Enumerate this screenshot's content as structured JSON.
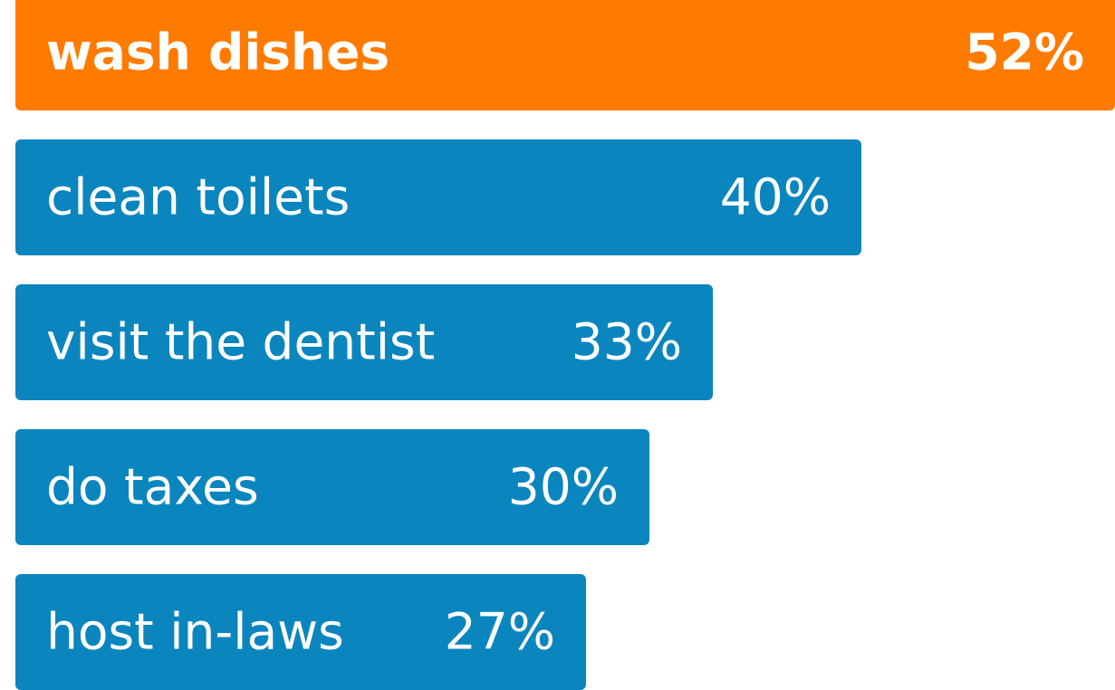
{
  "chart_data": {
    "type": "bar",
    "orientation": "horizontal",
    "title": "",
    "xlabel": "",
    "ylabel": "",
    "categories": [
      "wash dishes",
      "clean toilets",
      "visit the dentist",
      "do taxes",
      "host in-laws"
    ],
    "values": [
      52,
      40,
      33,
      30,
      27
    ],
    "value_labels": [
      "52%",
      "40%",
      "33%",
      "30%",
      "27%"
    ],
    "xlim": [
      0,
      52
    ],
    "grid": false,
    "legend": "none",
    "highlight_index": 0,
    "colors": {
      "highlight": "#FF7B00",
      "default": "#0B85BE",
      "text": "#FFFFFF"
    }
  }
}
